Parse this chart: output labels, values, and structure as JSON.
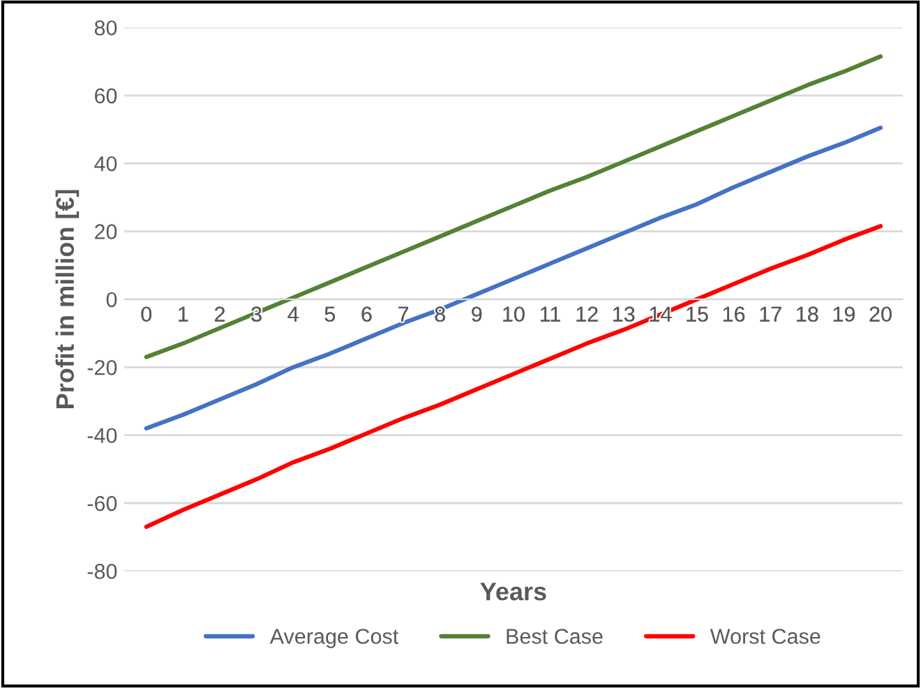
{
  "chart_data": {
    "type": "line",
    "xlabel": "Years",
    "ylabel": "Profit in million [€]",
    "categories": [
      "0",
      "1",
      "2",
      "3",
      "4",
      "5",
      "6",
      "7",
      "8",
      "9",
      "10",
      "11",
      "12",
      "13",
      "14",
      "15",
      "16",
      "17",
      "18",
      "19",
      "20"
    ],
    "series": [
      {
        "name": "Average Cost",
        "color": "#4472c4",
        "values": [
          -38,
          -34,
          -29.5,
          -25,
          -20,
          -16,
          -11.5,
          -7,
          -3,
          1.5,
          6,
          10.5,
          15,
          19.5,
          24,
          28,
          33,
          37.5,
          42,
          46,
          50.5
        ]
      },
      {
        "name": "Best Case",
        "color": "#548235",
        "values": [
          -17,
          -13,
          -8.5,
          -4,
          0.5,
          5,
          9.5,
          14,
          18.5,
          23,
          27.5,
          32,
          36,
          40.5,
          45,
          49.5,
          54,
          58.5,
          63,
          67,
          71.5
        ]
      },
      {
        "name": "Worst Case",
        "color": "#ff0000",
        "values": [
          -67,
          -62,
          -57.5,
          -53,
          -48,
          -44,
          -39.5,
          -35,
          -31,
          -26.5,
          -22,
          -17.5,
          -13,
          -9,
          -4.5,
          0,
          4.5,
          9,
          13,
          17.5,
          21.5
        ]
      }
    ],
    "ylim": [
      -80,
      80
    ],
    "yticks": [
      -80,
      -60,
      -40,
      -20,
      0,
      20,
      40,
      60,
      80
    ],
    "grid": "y",
    "legend": "bottom",
    "marker": "none",
    "line_style": "solid"
  }
}
